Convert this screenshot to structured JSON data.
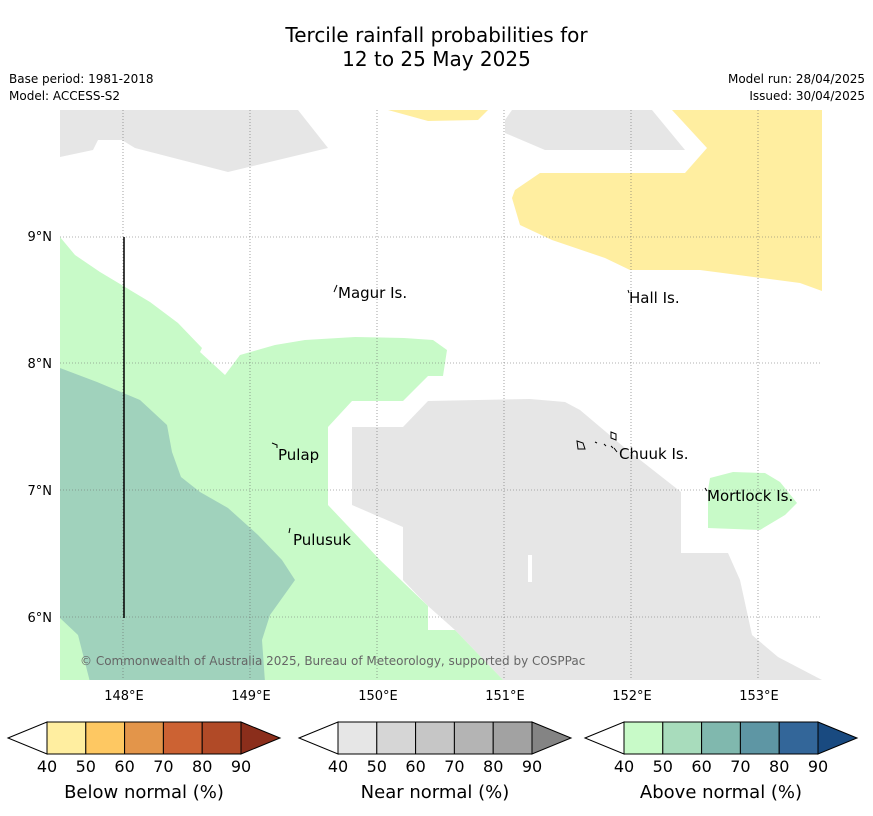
{
  "title_line1": "Tercile rainfall probabilities for",
  "title_line2": "12 to 25 May 2025",
  "base_period": "Base period: 1981-2018",
  "model": "Model: ACCESS-S2",
  "model_run": "Model run: 28/04/2025",
  "issued": "Issued: 30/04/2025",
  "copyright": "© Commonwealth of Australia 2025, Bureau of Meteorology, supported by COSPPac",
  "map": {
    "lat_labels": [
      "9°N",
      "8°N",
      "7°N",
      "6°N"
    ],
    "lon_labels": [
      "148°E",
      "149°E",
      "150°E",
      "151°E",
      "152°E",
      "153°E"
    ],
    "places": [
      "Magur Is.",
      "Hall Is.",
      "Pulap",
      "Chuuk Is.",
      "Mortlock Is.",
      "Pulusuk"
    ]
  },
  "colorbars": {
    "ticks": [
      "40",
      "50",
      "60",
      "70",
      "80",
      "90"
    ],
    "below": {
      "label": "Below normal (%)",
      "colors": [
        "#ffeea0",
        "#fec862",
        "#e3954a",
        "#cc6233",
        "#b14a27",
        "#8b2e1b"
      ]
    },
    "near": {
      "label": "Near normal (%)",
      "colors": [
        "#e6e6e6",
        "#d6d6d6",
        "#c6c6c6",
        "#b4b4b4",
        "#a2a2a2",
        "#848484"
      ]
    },
    "above": {
      "label": "Above normal (%)",
      "colors": [
        "#c8fac8",
        "#a8dcbc",
        "#80b8ae",
        "#5e96a4",
        "#336699",
        "#194a80"
      ]
    }
  }
}
